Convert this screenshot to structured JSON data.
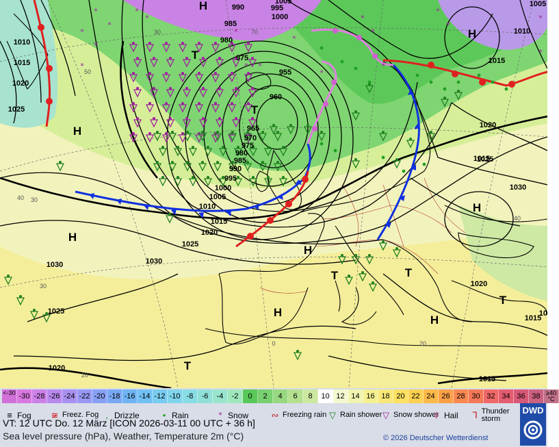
{
  "map": {
    "isobar_labels": [
      "990",
      "995",
      "1000",
      "1005",
      "985",
      "980",
      "975",
      "955",
      "960",
      "965",
      "970",
      "975",
      "980",
      "985",
      "990",
      "995",
      "1000",
      "1005",
      "1010",
      "1015",
      "1020",
      "1025",
      "1030",
      "1030",
      "1025",
      "1020",
      "1015",
      "1010",
      "1010",
      "1015",
      "1020",
      "1025",
      "1020",
      "1025",
      "1030",
      "1015",
      "1020",
      "1015",
      "1005",
      "1010",
      "1015"
    ],
    "high_marks": [
      "H",
      "H",
      "H",
      "H",
      "H",
      "H",
      "H",
      "H"
    ],
    "low_marks": [
      "T",
      "T",
      "T",
      "T",
      "T",
      "T"
    ],
    "latlon_labels": [
      "30",
      "50",
      "70",
      "40",
      "30",
      "20",
      "0",
      "40",
      "20",
      "30"
    ]
  },
  "legend": {
    "temp_scale": [
      {
        "label": "<-30",
        "color": "#d070d8"
      },
      {
        "label": "-30",
        "color": "#d878e0"
      },
      {
        "label": "-28",
        "color": "#cc80e8"
      },
      {
        "label": "-26",
        "color": "#b888ec"
      },
      {
        "label": "-24",
        "color": "#a890f0"
      },
      {
        "label": "-22",
        "color": "#9898f4"
      },
      {
        "label": "-20",
        "color": "#88a0f4"
      },
      {
        "label": "-18",
        "color": "#78a8f4"
      },
      {
        "label": "-16",
        "color": "#70b4f4"
      },
      {
        "label": "-14",
        "color": "#70c0f4"
      },
      {
        "label": "-12",
        "color": "#78ccf0"
      },
      {
        "label": "-10",
        "color": "#80d4ec"
      },
      {
        "label": "-8",
        "color": "#88dce4"
      },
      {
        "label": "-6",
        "color": "#90e0d8"
      },
      {
        "label": "-4",
        "color": "#98e4cc"
      },
      {
        "label": "-2",
        "color": "#a0e8bc"
      },
      {
        "label": "0",
        "color": "#58c858"
      },
      {
        "label": "2",
        "color": "#78d070"
      },
      {
        "label": "4",
        "color": "#98d880"
      },
      {
        "label": "6",
        "color": "#b4e090"
      },
      {
        "label": "8",
        "color": "#cce8a0"
      },
      {
        "label": "10",
        "color": "#ffffff"
      },
      {
        "label": "12",
        "color": "#f4f8d0"
      },
      {
        "label": "14",
        "color": "#f0f4b0"
      },
      {
        "label": "16",
        "color": "#f4f090"
      },
      {
        "label": "18",
        "color": "#f8e878"
      },
      {
        "label": "20",
        "color": "#fce060"
      },
      {
        "label": "22",
        "color": "#fcd050"
      },
      {
        "label": "24",
        "color": "#fcb848"
      },
      {
        "label": "26",
        "color": "#fca048"
      },
      {
        "label": "28",
        "color": "#f88850"
      },
      {
        "label": "30",
        "color": "#f47858"
      },
      {
        "label": "32",
        "color": "#f06868"
      },
      {
        "label": "34",
        "color": "#e45c70"
      },
      {
        "label": "36",
        "color": "#d85878"
      },
      {
        "label": "38",
        "color": "#cc6080"
      },
      {
        "label": "≥40 °C",
        "color": "#c07088"
      }
    ],
    "weather_items": [
      {
        "label": "Fog",
        "icon": "fog-icon",
        "glyph": "≡",
        "color": "#000000"
      },
      {
        "label": "Freez. Fog",
        "icon": "freezing-fog-icon",
        "glyph": "≆",
        "color": "#d02020"
      },
      {
        "label": "Drizzle",
        "icon": "drizzle-icon",
        "glyph": ",",
        "color": "#208020"
      },
      {
        "label": "Rain",
        "icon": "rain-icon",
        "glyph": "•",
        "color": "#20a020"
      },
      {
        "label": "Snow",
        "icon": "snow-icon",
        "glyph": "*",
        "color": "#a020a0"
      },
      {
        "label": "Freezing rain",
        "icon": "freezing-rain-icon",
        "glyph": "∾",
        "color": "#c02020"
      },
      {
        "label": "Rain shower",
        "icon": "rain-shower-icon",
        "glyph": "▽",
        "color": "#208020"
      },
      {
        "label": "Snow shower",
        "icon": "snow-shower-icon",
        "glyph": "▽",
        "color": "#a020a0"
      },
      {
        "label": "Hail",
        "icon": "hail-icon",
        "glyph": "◊",
        "color": "#c02060"
      },
      {
        "label": "Thunder storm",
        "icon": "thunderstorm-icon",
        "glyph": "Ꞁ",
        "color": "#c02020"
      }
    ],
    "valid_time": "VT: 12 UTC Do.   12 März [ICON 2026-03-11  00 UTC + 36 h]",
    "description": "Sea level pressure (hPa), Weather, Temperature 2m (°C)",
    "copyright": "© 2026 Deutscher Wetterdienst",
    "logo_text": "DWD"
  }
}
